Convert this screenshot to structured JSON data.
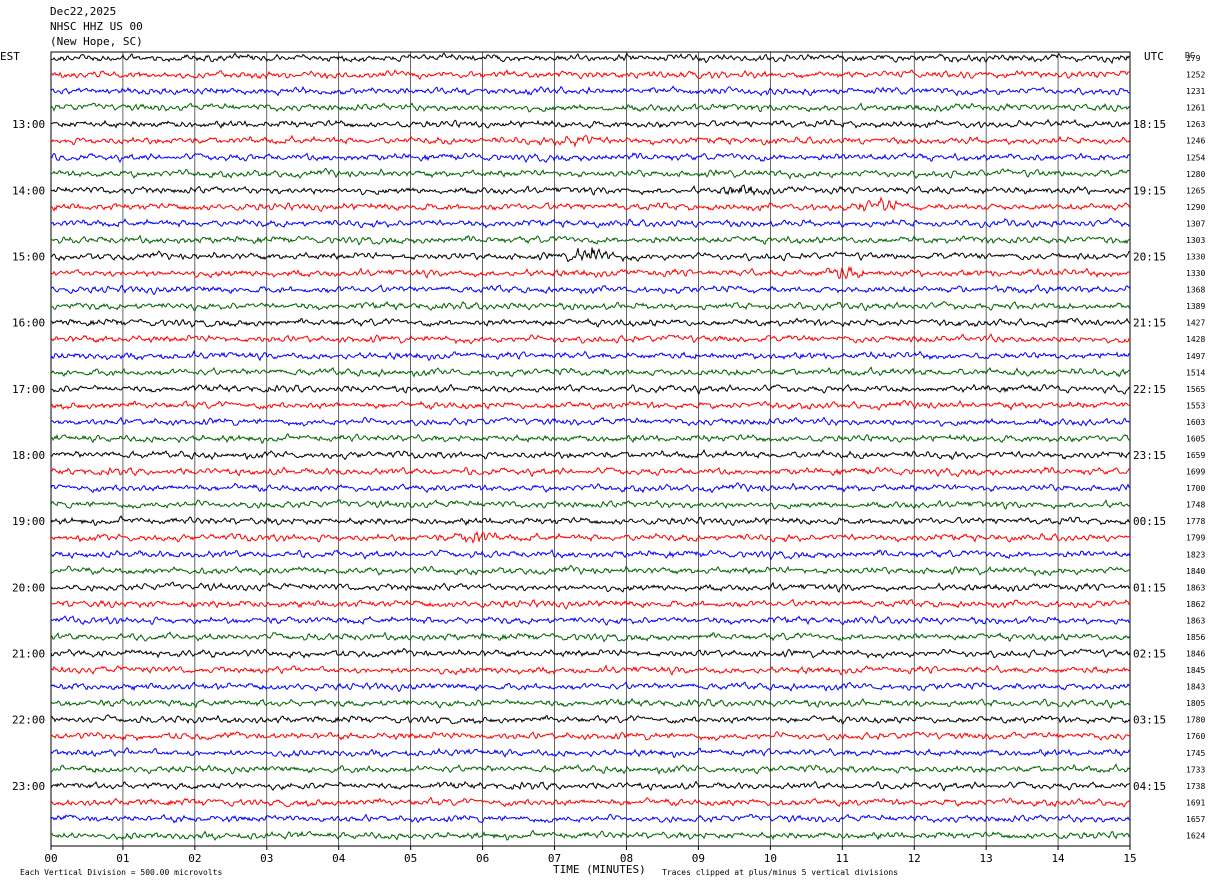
{
  "header": {
    "date": "Dec22,2025",
    "station": "NHSC HHZ US 00",
    "location": "(New Hope, SC)"
  },
  "left_axis_title": "EST",
  "right_axis_title": "UTC",
  "dc_title": "DC",
  "footer": {
    "scale_note": "Each Vertical Division =  500.00 microvolts",
    "clip_note": "Traces clipped at plus/minus 5 vertical divisions"
  },
  "colors": {
    "trace": [
      "#000000",
      "#ff0000",
      "#0000ff",
      "#006400"
    ],
    "grid": "#000000"
  },
  "chart_data": {
    "type": "line",
    "title": "NHSC HHZ US 00 (New Hope, SC) Dec22,2025",
    "xlabel": "TIME (MINUTES)",
    "x_ticks": [
      "00",
      "01",
      "02",
      "03",
      "04",
      "05",
      "06",
      "07",
      "08",
      "09",
      "10",
      "11",
      "12",
      "13",
      "14",
      "15"
    ],
    "xlim": [
      0,
      15
    ],
    "rows_per_hour": 4,
    "minutes_per_row": 15,
    "left_hour_labels": [
      "13:00",
      "14:00",
      "15:00",
      "16:00",
      "17:00",
      "18:00",
      "19:00",
      "20:00",
      "21:00",
      "22:00",
      "23:00"
    ],
    "right_hour_labels": [
      "18:15",
      "19:15",
      "20:15",
      "21:15",
      "22:15",
      "23:15",
      "00:15",
      "01:15",
      "02:15",
      "03:15",
      "04:15"
    ],
    "dc_offsets": [
      "279",
      "1252",
      "1231",
      "1261",
      "1263",
      "1246",
      "1254",
      "1280",
      "1265",
      "1290",
      "1307",
      "1303",
      "1330",
      "1330",
      "1368",
      "1389",
      "1427",
      "1428",
      "1497",
      "1514",
      "1565",
      "1553",
      "1603",
      "1605",
      "1659",
      "1699",
      "1700",
      "1748",
      "1778",
      "1799",
      "1823",
      "1840",
      "1863",
      "1862",
      "1863",
      "1856",
      "1846",
      "1845",
      "1843",
      "1805",
      "1780",
      "1760",
      "1745",
      "1733",
      "1738",
      "1691",
      "1657",
      "1624"
    ],
    "event_markers": [
      {
        "row": 5,
        "minute": 7.3,
        "strength": 1.6
      },
      {
        "row": 8,
        "minute": 9.6,
        "strength": 1.3
      },
      {
        "row": 9,
        "minute": 11.5,
        "strength": 2.0
      },
      {
        "row": 12,
        "minute": 7.5,
        "strength": 2.6
      },
      {
        "row": 13,
        "minute": 11.0,
        "strength": 1.6
      },
      {
        "row": 29,
        "minute": 5.9,
        "strength": 1.6
      }
    ]
  }
}
